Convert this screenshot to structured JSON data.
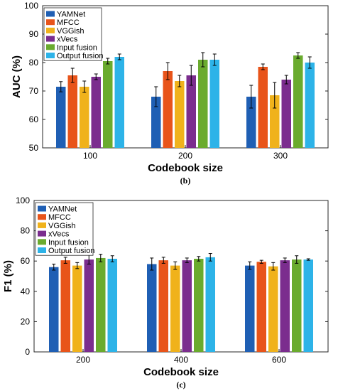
{
  "colors": {
    "YAMNet": "#1f5fb4",
    "MFCC": "#e8541a",
    "VGGish": "#f0b21b",
    "xVecs": "#7b2d8e",
    "Input fusion": "#6aab2e",
    "Output fusion": "#2db3e8"
  },
  "chart_data": [
    {
      "type": "bar",
      "caption": "(b)",
      "xlabel": "Codebook size",
      "ylabel": "AUC (%)",
      "ylim": [
        50,
        100
      ],
      "yticks": [
        50,
        60,
        70,
        80,
        90,
        100
      ],
      "categories": [
        "100",
        "200",
        "300"
      ],
      "legend_position": "top-left",
      "series": [
        {
          "name": "YAMNet",
          "values": [
            71.5,
            68,
            68
          ],
          "errors": [
            1.8,
            3.5,
            4
          ]
        },
        {
          "name": "MFCC",
          "values": [
            75.5,
            77,
            78.5
          ],
          "errors": [
            2.5,
            3,
            1
          ]
        },
        {
          "name": "VGGish",
          "values": [
            71.5,
            73.5,
            68.5
          ],
          "errors": [
            2,
            2,
            4.5
          ]
        },
        {
          "name": "xVecs",
          "values": [
            75,
            75.5,
            74
          ],
          "errors": [
            1,
            3.5,
            1.5
          ]
        },
        {
          "name": "Input fusion",
          "values": [
            80.5,
            81,
            82.5
          ],
          "errors": [
            1,
            2.5,
            1
          ]
        },
        {
          "name": "Output fusion",
          "values": [
            82,
            81,
            80
          ],
          "errors": [
            1,
            2,
            2
          ]
        }
      ]
    },
    {
      "type": "bar",
      "caption": "(c)",
      "xlabel": "Codebook size",
      "ylabel": "F1 (%)",
      "ylim": [
        0,
        100
      ],
      "yticks": [
        0,
        20,
        40,
        60,
        80,
        100
      ],
      "categories": [
        "200",
        "400",
        "600"
      ],
      "legend_position": "top-left",
      "series": [
        {
          "name": "YAMNet",
          "values": [
            56,
            58,
            57
          ],
          "errors": [
            2,
            4,
            2.5
          ]
        },
        {
          "name": "MFCC",
          "values": [
            60.5,
            60.5,
            59.5
          ],
          "errors": [
            2,
            2,
            1
          ]
        },
        {
          "name": "VGGish",
          "values": [
            57,
            57,
            56.5
          ],
          "errors": [
            2,
            2.5,
            2.5
          ]
        },
        {
          "name": "xVecs",
          "values": [
            61,
            60.5,
            60.5
          ],
          "errors": [
            3,
            1.5,
            1.5
          ]
        },
        {
          "name": "Input fusion",
          "values": [
            62,
            61.5,
            61
          ],
          "errors": [
            2.5,
            1.5,
            2.5
          ]
        },
        {
          "name": "Output fusion",
          "values": [
            61.5,
            62.5,
            61
          ],
          "errors": [
            2,
            2.5,
            0.5
          ]
        }
      ]
    }
  ]
}
